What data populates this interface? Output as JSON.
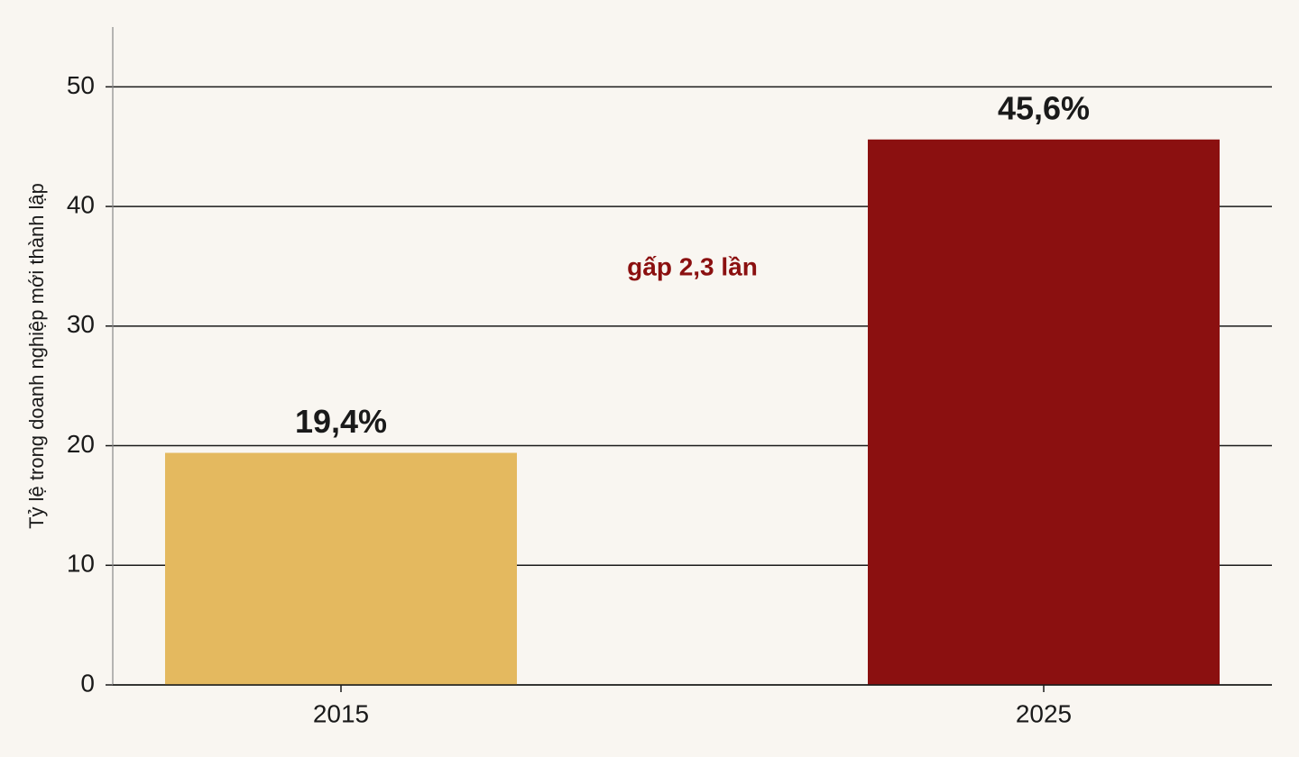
{
  "chart_data": {
    "type": "bar",
    "y_label": "Tỷ lệ trong doanh nghiệp mới thành lập",
    "annotation": "gấp 2,3 lần",
    "categories": [
      "2015",
      "2025"
    ],
    "values": [
      19.4,
      45.6
    ],
    "value_labels": [
      "19,4%",
      "45,6%"
    ],
    "colors": [
      "#e4b95f",
      "#8b1010"
    ],
    "ylim": [
      0,
      55
    ],
    "yticks": [
      0,
      10,
      20,
      30,
      40,
      50
    ],
    "grid": true
  }
}
